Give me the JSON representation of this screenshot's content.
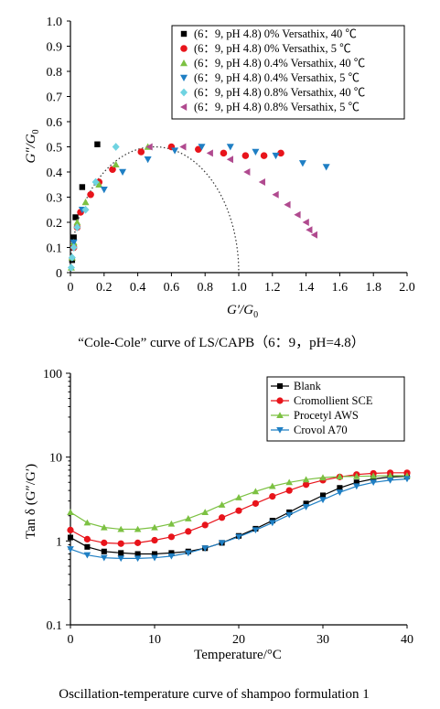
{
  "chart_data": [
    {
      "type": "scatter",
      "ylabel": "G″/G0",
      "xlabel": "G′/G0",
      "xlim": [
        0,
        2.0
      ],
      "ylim": [
        0,
        1.0
      ],
      "xticks": [
        "0",
        "0.2",
        "0.4",
        "0.6",
        "0.8",
        "1.0",
        "1.2",
        "1.4",
        "1.6",
        "1.8",
        "2.0"
      ],
      "yticks": [
        "0",
        "0.1",
        "0.2",
        "0.3",
        "0.4",
        "0.5",
        "0.6",
        "0.7",
        "0.8",
        "0.9",
        "1.0"
      ],
      "caption": "“Cole-Cole” curve of LS/CAPB（6：9，pH=4.8）",
      "legend_placement": "top-right",
      "series": [
        {
          "name": "(6：9, pH 4.8) 0% Versathix, 40 ℃",
          "marker": "square",
          "color": "#000000",
          "points": [
            [
              0.01,
              0.05
            ],
            [
              0.015,
              0.1
            ],
            [
              0.02,
              0.14
            ],
            [
              0.03,
              0.22
            ],
            [
              0.07,
              0.34
            ],
            [
              0.16,
              0.51
            ]
          ]
        },
        {
          "name": "(6：9, pH 4.8) 0% Versathix, 5 ℃",
          "marker": "circle",
          "color": "#e8141b",
          "points": [
            [
              0.02,
              0.1
            ],
            [
              0.04,
              0.18
            ],
            [
              0.06,
              0.24
            ],
            [
              0.12,
              0.31
            ],
            [
              0.17,
              0.36
            ],
            [
              0.25,
              0.41
            ],
            [
              0.42,
              0.48
            ],
            [
              0.6,
              0.5
            ],
            [
              0.76,
              0.49
            ],
            [
              0.91,
              0.475
            ],
            [
              1.04,
              0.465
            ],
            [
              1.15,
              0.465
            ],
            [
              1.25,
              0.475
            ]
          ]
        },
        {
          "name": "(6：9, pH 4.8) 0.4% Versathix, 40 ℃",
          "marker": "triangle-up",
          "color": "#7cc142",
          "points": [
            [
              0.005,
              0.02
            ],
            [
              0.01,
              0.06
            ],
            [
              0.02,
              0.12
            ],
            [
              0.04,
              0.2
            ],
            [
              0.09,
              0.28
            ],
            [
              0.17,
              0.35
            ],
            [
              0.27,
              0.43
            ],
            [
              0.46,
              0.5
            ]
          ]
        },
        {
          "name": "(6：9, pH 4.8) 0.4% Versathix, 5 ℃",
          "marker": "triangle-down",
          "color": "#1f7fc4",
          "points": [
            [
              0.02,
              0.12
            ],
            [
              0.07,
              0.25
            ],
            [
              0.2,
              0.33
            ],
            [
              0.31,
              0.4
            ],
            [
              0.46,
              0.45
            ],
            [
              0.62,
              0.485
            ],
            [
              0.78,
              0.5
            ],
            [
              0.95,
              0.5
            ],
            [
              1.1,
              0.48
            ],
            [
              1.22,
              0.465
            ],
            [
              1.38,
              0.435
            ],
            [
              1.52,
              0.42
            ]
          ]
        },
        {
          "name": "(6：9, pH 4.8) 0.8% Versathix, 40 ℃",
          "marker": "diamond",
          "color": "#6fd3e1",
          "points": [
            [
              0.005,
              0.02
            ],
            [
              0.01,
              0.06
            ],
            [
              0.02,
              0.1
            ],
            [
              0.04,
              0.18
            ],
            [
              0.09,
              0.25
            ],
            [
              0.15,
              0.36
            ],
            [
              0.27,
              0.5
            ]
          ]
        },
        {
          "name": "(6：9, pH 4.8) 0.8% Versathix, 5 ℃",
          "marker": "triangle-left",
          "color": "#b04a8f",
          "points": [
            [
              0.47,
              0.5
            ],
            [
              0.67,
              0.5
            ],
            [
              0.83,
              0.475
            ],
            [
              0.95,
              0.45
            ],
            [
              1.05,
              0.4
            ],
            [
              1.14,
              0.36
            ],
            [
              1.22,
              0.31
            ],
            [
              1.29,
              0.27
            ],
            [
              1.35,
              0.23
            ],
            [
              1.4,
              0.2
            ],
            [
              1.42,
              0.17
            ],
            [
              1.45,
              0.15
            ]
          ]
        },
        {
          "name": "",
          "kind": "semicircle-dotted",
          "center": [
            0.5,
            0
          ],
          "radius": 0.5
        }
      ]
    },
    {
      "type": "line",
      "ylabel": "Tan δ (G″/G′)",
      "xlabel": "Temperature/°C",
      "xlim": [
        0,
        40
      ],
      "ylim": [
        0.1,
        100
      ],
      "yscale": "log",
      "xticks": [
        "0",
        "10",
        "20",
        "30",
        "40"
      ],
      "yticks": [
        "0.1",
        "1",
        "10",
        "100"
      ],
      "caption": "Oscillation-temperature curve of shampoo formulation 1",
      "legend_placement": "top-right",
      "x": [
        0,
        2,
        4,
        6,
        8,
        10,
        12,
        14,
        16,
        18,
        20,
        22,
        24,
        26,
        28,
        30,
        32,
        34,
        36,
        38,
        40
      ],
      "series": [
        {
          "name": "Blank",
          "marker": "square",
          "color": "#000000",
          "values": [
            1.1,
            0.85,
            0.75,
            0.72,
            0.7,
            0.7,
            0.72,
            0.75,
            0.82,
            0.95,
            1.15,
            1.4,
            1.75,
            2.2,
            2.8,
            3.5,
            4.3,
            5.0,
            5.5,
            5.8,
            5.9
          ]
        },
        {
          "name": "Cromollient SCE",
          "marker": "circle",
          "color": "#e8141b",
          "values": [
            1.35,
            1.05,
            0.95,
            0.93,
            0.95,
            1.02,
            1.12,
            1.3,
            1.55,
            1.9,
            2.3,
            2.8,
            3.4,
            4.0,
            4.7,
            5.3,
            5.8,
            6.2,
            6.4,
            6.5,
            6.5
          ]
        },
        {
          "name": "Procetyl AWS",
          "marker": "triangle-up",
          "color": "#7cc142",
          "values": [
            2.2,
            1.65,
            1.45,
            1.38,
            1.38,
            1.45,
            1.6,
            1.85,
            2.2,
            2.7,
            3.3,
            3.9,
            4.5,
            5.0,
            5.4,
            5.7,
            5.85,
            5.9,
            5.95,
            6.0,
            6.0
          ]
        },
        {
          "name": "Crovol A70",
          "marker": "triangle-down",
          "color": "#1f7fc4",
          "values": [
            0.8,
            0.68,
            0.63,
            0.62,
            0.62,
            0.63,
            0.66,
            0.72,
            0.82,
            0.95,
            1.12,
            1.35,
            1.65,
            2.05,
            2.55,
            3.1,
            3.8,
            4.5,
            5.0,
            5.3,
            5.5
          ]
        }
      ]
    }
  ]
}
